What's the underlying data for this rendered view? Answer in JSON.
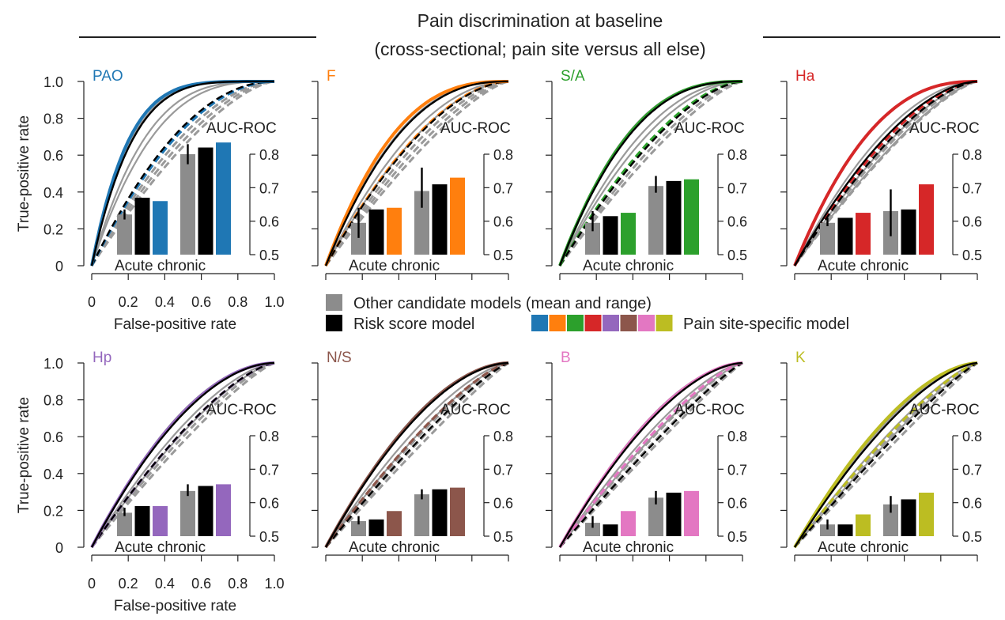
{
  "title_line1": "Pain discrimination at baseline",
  "title_line2": "(cross-sectional; pain site versus all else)",
  "axis": {
    "xlabel": "False-positive rate",
    "ylabel": "True-positive rate",
    "xticks": [
      "0",
      "0.2",
      "0.4",
      "0.6",
      "0.8",
      "1.0"
    ],
    "yticks": [
      "0",
      "0.2",
      "0.4",
      "0.6",
      "0.8",
      "1.0"
    ]
  },
  "inset": {
    "title": "AUC-ROC",
    "xlabel": "Acute chronic",
    "ticks": [
      "0.8",
      "0.7",
      "0.6",
      "0.5"
    ],
    "ylim": [
      0.5,
      0.8
    ]
  },
  "legend": {
    "other": "Other candidate models (mean and range)",
    "risk": "Risk score model",
    "site": "Pain site-specific model",
    "site_colors": [
      "#1f77b4",
      "#ff7f0e",
      "#2ca02c",
      "#d62728",
      "#9467bd",
      "#8c564b",
      "#e377c2",
      "#bcbd22"
    ]
  },
  "colors": {
    "other": "#8c8c8c",
    "risk": "#000000"
  },
  "chart_data": [
    {
      "type": "line+bar",
      "site": "PAO",
      "color": "#1f77b4",
      "ytick_labels": true,
      "xtick_labels": true,
      "show_xlabel": true,
      "acute": {
        "other": 0.62,
        "other_range": [
          0.605,
          0.635
        ],
        "risk": 0.67,
        "site": 0.66
      },
      "chronic": {
        "other": 0.8,
        "other_range": [
          0.77,
          0.83
        ],
        "risk": 0.82,
        "site": 0.835
      }
    },
    {
      "type": "line+bar",
      "site": "F",
      "color": "#ff7f0e",
      "ytick_labels": false,
      "xtick_labels": false,
      "show_xlabel": false,
      "acute": {
        "other": 0.595,
        "other_range": [
          0.55,
          0.64
        ],
        "risk": 0.635,
        "site": 0.64
      },
      "chronic": {
        "other": 0.69,
        "other_range": [
          0.64,
          0.76
        ],
        "risk": 0.71,
        "site": 0.73
      }
    },
    {
      "type": "line+bar",
      "site": "S/A",
      "color": "#2ca02c",
      "ytick_labels": false,
      "xtick_labels": false,
      "show_xlabel": false,
      "acute": {
        "other": 0.595,
        "other_range": [
          0.57,
          0.63
        ],
        "risk": 0.615,
        "site": 0.625
      },
      "chronic": {
        "other": 0.705,
        "other_range": [
          0.685,
          0.735
        ],
        "risk": 0.72,
        "site": 0.725
      }
    },
    {
      "type": "line+bar",
      "site": "Ha",
      "color": "#d62728",
      "ytick_labels": false,
      "xtick_labels": false,
      "show_xlabel": false,
      "acute": {
        "other": 0.595,
        "other_range": [
          0.585,
          0.61
        ],
        "risk": 0.61,
        "site": 0.625
      },
      "chronic": {
        "other": 0.63,
        "other_range": [
          0.555,
          0.695
        ],
        "risk": 0.635,
        "site": 0.71
      }
    },
    {
      "type": "line+bar",
      "site": "Hp",
      "color": "#9467bd",
      "ytick_labels": true,
      "xtick_labels": true,
      "show_xlabel": true,
      "acute": {
        "other": 0.57,
        "other_range": [
          0.56,
          0.585
        ],
        "risk": 0.59,
        "site": 0.59
      },
      "chronic": {
        "other": 0.635,
        "other_range": [
          0.62,
          0.655
        ],
        "risk": 0.65,
        "site": 0.655
      }
    },
    {
      "type": "line+bar",
      "site": "N/S",
      "color": "#8c564b",
      "ytick_labels": false,
      "xtick_labels": false,
      "show_xlabel": false,
      "acute": {
        "other": 0.545,
        "other_range": [
          0.535,
          0.56
        ],
        "risk": 0.55,
        "site": 0.575
      },
      "chronic": {
        "other": 0.625,
        "other_range": [
          0.61,
          0.64
        ],
        "risk": 0.64,
        "site": 0.645
      }
    },
    {
      "type": "line+bar",
      "site": "B",
      "color": "#e377c2",
      "ytick_labels": false,
      "xtick_labels": false,
      "show_xlabel": false,
      "acute": {
        "other": 0.54,
        "other_range": [
          0.525,
          0.56
        ],
        "risk": 0.535,
        "site": 0.575
      },
      "chronic": {
        "other": 0.615,
        "other_range": [
          0.595,
          0.635
        ],
        "risk": 0.63,
        "site": 0.635
      }
    },
    {
      "type": "line+bar",
      "site": "K",
      "color": "#bcbd22",
      "ytick_labels": false,
      "xtick_labels": false,
      "show_xlabel": false,
      "acute": {
        "other": 0.535,
        "other_range": [
          0.52,
          0.55
        ],
        "risk": 0.535,
        "site": 0.565
      },
      "chronic": {
        "other": 0.595,
        "other_range": [
          0.57,
          0.62
        ],
        "risk": 0.61,
        "site": 0.63
      }
    }
  ]
}
